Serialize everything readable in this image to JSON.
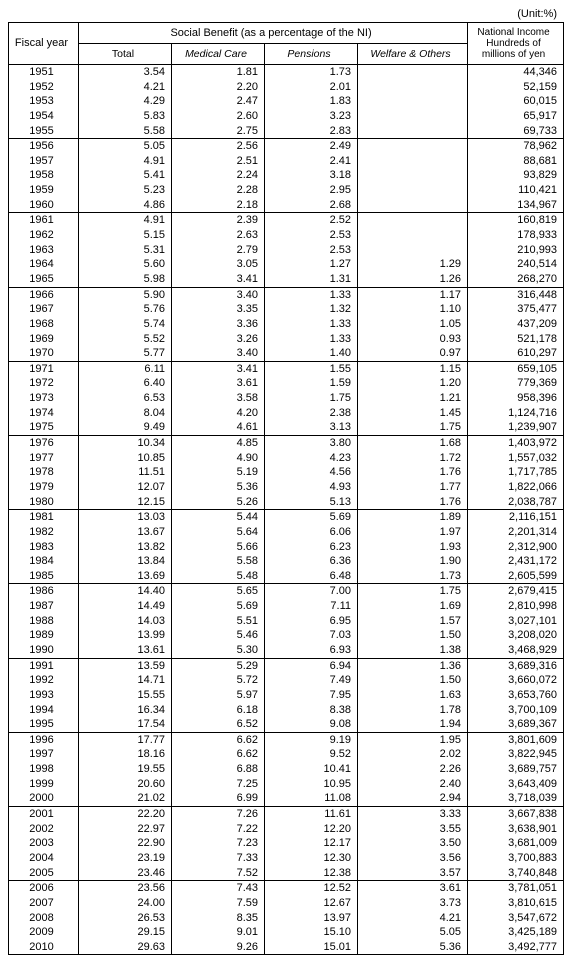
{
  "unit_label": "(Unit:%)",
  "headers": {
    "fiscal_year": "Fiscal year",
    "social_benefit": "Social Benefit (as a percentage of the NI)",
    "national_income": "National Income Hundreds of millions of yen",
    "total": "Total",
    "medical": "Medical Care",
    "pensions": "Pensions",
    "welfare": "Welfare & Others"
  },
  "groups": [
    [
      {
        "y": "1951",
        "t": "3.54",
        "m": "1.81",
        "p": "1.73",
        "w": "",
        "ni": "44,346"
      },
      {
        "y": "1952",
        "t": "4.21",
        "m": "2.20",
        "p": "2.01",
        "w": "",
        "ni": "52,159"
      },
      {
        "y": "1953",
        "t": "4.29",
        "m": "2.47",
        "p": "1.83",
        "w": "",
        "ni": "60,015"
      },
      {
        "y": "1954",
        "t": "5.83",
        "m": "2.60",
        "p": "3.23",
        "w": "",
        "ni": "65,917"
      },
      {
        "y": "1955",
        "t": "5.58",
        "m": "2.75",
        "p": "2.83",
        "w": "",
        "ni": "69,733"
      }
    ],
    [
      {
        "y": "1956",
        "t": "5.05",
        "m": "2.56",
        "p": "2.49",
        "w": "",
        "ni": "78,962"
      },
      {
        "y": "1957",
        "t": "4.91",
        "m": "2.51",
        "p": "2.41",
        "w": "",
        "ni": "88,681"
      },
      {
        "y": "1958",
        "t": "5.41",
        "m": "2.24",
        "p": "3.18",
        "w": "",
        "ni": "93,829"
      },
      {
        "y": "1959",
        "t": "5.23",
        "m": "2.28",
        "p": "2.95",
        "w": "",
        "ni": "110,421"
      },
      {
        "y": "1960",
        "t": "4.86",
        "m": "2.18",
        "p": "2.68",
        "w": "",
        "ni": "134,967"
      }
    ],
    [
      {
        "y": "1961",
        "t": "4.91",
        "m": "2.39",
        "p": "2.52",
        "w": "",
        "ni": "160,819"
      },
      {
        "y": "1962",
        "t": "5.15",
        "m": "2.63",
        "p": "2.53",
        "w": "",
        "ni": "178,933"
      },
      {
        "y": "1963",
        "t": "5.31",
        "m": "2.79",
        "p": "2.53",
        "w": "",
        "ni": "210,993"
      },
      {
        "y": "1964",
        "t": "5.60",
        "m": "3.05",
        "p": "1.27",
        "w": "1.29",
        "ni": "240,514"
      },
      {
        "y": "1965",
        "t": "5.98",
        "m": "3.41",
        "p": "1.31",
        "w": "1.26",
        "ni": "268,270"
      }
    ],
    [
      {
        "y": "1966",
        "t": "5.90",
        "m": "3.40",
        "p": "1.33",
        "w": "1.17",
        "ni": "316,448"
      },
      {
        "y": "1967",
        "t": "5.76",
        "m": "3.35",
        "p": "1.32",
        "w": "1.10",
        "ni": "375,477"
      },
      {
        "y": "1968",
        "t": "5.74",
        "m": "3.36",
        "p": "1.33",
        "w": "1.05",
        "ni": "437,209"
      },
      {
        "y": "1969",
        "t": "5.52",
        "m": "3.26",
        "p": "1.33",
        "w": "0.93",
        "ni": "521,178"
      },
      {
        "y": "1970",
        "t": "5.77",
        "m": "3.40",
        "p": "1.40",
        "w": "0.97",
        "ni": "610,297"
      }
    ],
    [
      {
        "y": "1971",
        "t": "6.11",
        "m": "3.41",
        "p": "1.55",
        "w": "1.15",
        "ni": "659,105"
      },
      {
        "y": "1972",
        "t": "6.40",
        "m": "3.61",
        "p": "1.59",
        "w": "1.20",
        "ni": "779,369"
      },
      {
        "y": "1973",
        "t": "6.53",
        "m": "3.58",
        "p": "1.75",
        "w": "1.21",
        "ni": "958,396"
      },
      {
        "y": "1974",
        "t": "8.04",
        "m": "4.20",
        "p": "2.38",
        "w": "1.45",
        "ni": "1,124,716"
      },
      {
        "y": "1975",
        "t": "9.49",
        "m": "4.61",
        "p": "3.13",
        "w": "1.75",
        "ni": "1,239,907"
      }
    ],
    [
      {
        "y": "1976",
        "t": "10.34",
        "m": "4.85",
        "p": "3.80",
        "w": "1.68",
        "ni": "1,403,972"
      },
      {
        "y": "1977",
        "t": "10.85",
        "m": "4.90",
        "p": "4.23",
        "w": "1.72",
        "ni": "1,557,032"
      },
      {
        "y": "1978",
        "t": "11.51",
        "m": "5.19",
        "p": "4.56",
        "w": "1.76",
        "ni": "1,717,785"
      },
      {
        "y": "1979",
        "t": "12.07",
        "m": "5.36",
        "p": "4.93",
        "w": "1.77",
        "ni": "1,822,066"
      },
      {
        "y": "1980",
        "t": "12.15",
        "m": "5.26",
        "p": "5.13",
        "w": "1.76",
        "ni": "2,038,787"
      }
    ],
    [
      {
        "y": "1981",
        "t": "13.03",
        "m": "5.44",
        "p": "5.69",
        "w": "1.89",
        "ni": "2,116,151"
      },
      {
        "y": "1982",
        "t": "13.67",
        "m": "5.64",
        "p": "6.06",
        "w": "1.97",
        "ni": "2,201,314"
      },
      {
        "y": "1983",
        "t": "13.82",
        "m": "5.66",
        "p": "6.23",
        "w": "1.93",
        "ni": "2,312,900"
      },
      {
        "y": "1984",
        "t": "13.84",
        "m": "5.58",
        "p": "6.36",
        "w": "1.90",
        "ni": "2,431,172"
      },
      {
        "y": "1985",
        "t": "13.69",
        "m": "5.48",
        "p": "6.48",
        "w": "1.73",
        "ni": "2,605,599"
      }
    ],
    [
      {
        "y": "1986",
        "t": "14.40",
        "m": "5.65",
        "p": "7.00",
        "w": "1.75",
        "ni": "2,679,415"
      },
      {
        "y": "1987",
        "t": "14.49",
        "m": "5.69",
        "p": "7.11",
        "w": "1.69",
        "ni": "2,810,998"
      },
      {
        "y": "1988",
        "t": "14.03",
        "m": "5.51",
        "p": "6.95",
        "w": "1.57",
        "ni": "3,027,101"
      },
      {
        "y": "1989",
        "t": "13.99",
        "m": "5.46",
        "p": "7.03",
        "w": "1.50",
        "ni": "3,208,020"
      },
      {
        "y": "1990",
        "t": "13.61",
        "m": "5.30",
        "p": "6.93",
        "w": "1.38",
        "ni": "3,468,929"
      }
    ],
    [
      {
        "y": "1991",
        "t": "13.59",
        "m": "5.29",
        "p": "6.94",
        "w": "1.36",
        "ni": "3,689,316"
      },
      {
        "y": "1992",
        "t": "14.71",
        "m": "5.72",
        "p": "7.49",
        "w": "1.50",
        "ni": "3,660,072"
      },
      {
        "y": "1993",
        "t": "15.55",
        "m": "5.97",
        "p": "7.95",
        "w": "1.63",
        "ni": "3,653,760"
      },
      {
        "y": "1994",
        "t": "16.34",
        "m": "6.18",
        "p": "8.38",
        "w": "1.78",
        "ni": "3,700,109"
      },
      {
        "y": "1995",
        "t": "17.54",
        "m": "6.52",
        "p": "9.08",
        "w": "1.94",
        "ni": "3,689,367"
      }
    ],
    [
      {
        "y": "1996",
        "t": "17.77",
        "m": "6.62",
        "p": "9.19",
        "w": "1.95",
        "ni": "3,801,609"
      },
      {
        "y": "1997",
        "t": "18.16",
        "m": "6.62",
        "p": "9.52",
        "w": "2.02",
        "ni": "3,822,945"
      },
      {
        "y": "1998",
        "t": "19.55",
        "m": "6.88",
        "p": "10.41",
        "w": "2.26",
        "ni": "3,689,757"
      },
      {
        "y": "1999",
        "t": "20.60",
        "m": "7.25",
        "p": "10.95",
        "w": "2.40",
        "ni": "3,643,409"
      },
      {
        "y": "2000",
        "t": "21.02",
        "m": "6.99",
        "p": "11.08",
        "w": "2.94",
        "ni": "3,718,039"
      }
    ],
    [
      {
        "y": "2001",
        "t": "22.20",
        "m": "7.26",
        "p": "11.61",
        "w": "3.33",
        "ni": "3,667,838"
      },
      {
        "y": "2002",
        "t": "22.97",
        "m": "7.22",
        "p": "12.20",
        "w": "3.55",
        "ni": "3,638,901"
      },
      {
        "y": "2003",
        "t": "22.90",
        "m": "7.23",
        "p": "12.17",
        "w": "3.50",
        "ni": "3,681,009"
      },
      {
        "y": "2004",
        "t": "23.19",
        "m": "7.33",
        "p": "12.30",
        "w": "3.56",
        "ni": "3,700,883"
      },
      {
        "y": "2005",
        "t": "23.46",
        "m": "7.52",
        "p": "12.38",
        "w": "3.57",
        "ni": "3,740,848"
      }
    ],
    [
      {
        "y": "2006",
        "t": "23.56",
        "m": "7.43",
        "p": "12.52",
        "w": "3.61",
        "ni": "3,781,051"
      },
      {
        "y": "2007",
        "t": "24.00",
        "m": "7.59",
        "p": "12.67",
        "w": "3.73",
        "ni": "3,810,615"
      },
      {
        "y": "2008",
        "t": "26.53",
        "m": "8.35",
        "p": "13.97",
        "w": "4.21",
        "ni": "3,547,672"
      },
      {
        "y": "2009",
        "t": "29.15",
        "m": "9.01",
        "p": "15.10",
        "w": "5.05",
        "ni": "3,425,189"
      },
      {
        "y": "2010",
        "t": "29.63",
        "m": "9.26",
        "p": "15.01",
        "w": "5.36",
        "ni": "3,492,777"
      }
    ]
  ]
}
